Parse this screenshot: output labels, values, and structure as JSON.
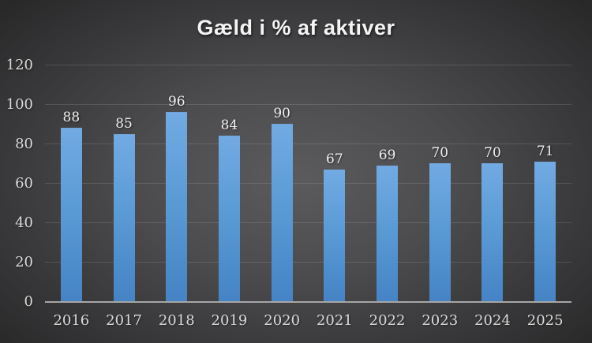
{
  "title": "Gæld i % af aktiver",
  "colors": {
    "bar_top": "#72aae3",
    "bar_mid": "#5b9bd5",
    "bar_bottom": "#4583c5",
    "background_center": "#5b5b5d",
    "background_edge": "#272728",
    "gridline": "rgba(255,255,255,0.13)",
    "axis_line": "#a6a6a6",
    "label": "#efefef",
    "tick": "#d9d9d9"
  },
  "chart_data": {
    "type": "bar",
    "categories": [
      "2016",
      "2017",
      "2018",
      "2019",
      "2020",
      "2021",
      "2022",
      "2023",
      "2024",
      "2025"
    ],
    "values": [
      88,
      85,
      96,
      84,
      90,
      67,
      69,
      70,
      70,
      71
    ],
    "title": "Gæld i % af aktiver",
    "xlabel": "",
    "ylabel": "",
    "ylim": [
      0,
      120
    ],
    "yticks": [
      0,
      20,
      40,
      60,
      80,
      100,
      120
    ],
    "grid": true,
    "legend": false,
    "data_labels": true
  }
}
